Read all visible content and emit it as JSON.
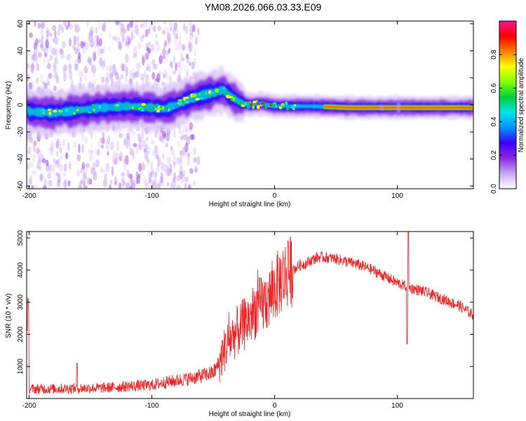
{
  "title": "YM08.2026.066.03.33.E09",
  "chart_data": [
    {
      "type": "heatmap",
      "xlabel": "Height of straight line (km)",
      "ylabel": "Frequency (Hz)",
      "xlim": [
        -202,
        162
      ],
      "ylim": [
        -62,
        62
      ],
      "xticks": [
        -200,
        -100,
        0,
        100
      ],
      "yticks": [
        -60,
        -40,
        -20,
        0,
        20,
        40,
        60
      ],
      "colorbar": {
        "label": "Normalized spectral amplitude",
        "range": [
          0,
          1
        ],
        "ticks": [
          "0.0",
          "0.2",
          "0.4",
          "0.6",
          "0.8"
        ],
        "colors": [
          "#ffffff",
          "#c9a6f2",
          "#8a2be2",
          "#3d00ff",
          "#0090ff",
          "#00e5e5",
          "#00d040",
          "#7fff00",
          "#ffff00",
          "#ff8000",
          "#ff0000",
          "#ff1493"
        ]
      },
      "ridge": [
        {
          "x": -200,
          "f": -5
        },
        {
          "x": -180,
          "f": -6
        },
        {
          "x": -160,
          "f": -4
        },
        {
          "x": -140,
          "f": -2
        },
        {
          "x": -120,
          "f": -1
        },
        {
          "x": -100,
          "f": -2
        },
        {
          "x": -90,
          "f": -3
        },
        {
          "x": -80,
          "f": 0
        },
        {
          "x": -70,
          "f": 4
        },
        {
          "x": -60,
          "f": 7
        },
        {
          "x": -50,
          "f": 9
        },
        {
          "x": -42,
          "f": 11
        },
        {
          "x": -35,
          "f": 6
        },
        {
          "x": -28,
          "f": 2
        },
        {
          "x": -20,
          "f": 0
        },
        {
          "x": -10,
          "f": 1
        },
        {
          "x": 0,
          "f": -1
        },
        {
          "x": 10,
          "f": -1
        },
        {
          "x": 30,
          "f": -1
        },
        {
          "x": 60,
          "f": -2
        },
        {
          "x": 90,
          "f": -2
        },
        {
          "x": 120,
          "f": -2
        },
        {
          "x": 162,
          "f": -2
        }
      ]
    },
    {
      "type": "line",
      "xlabel": "Height of straight line (km)",
      "ylabel": "SNR (10 * v/v)",
      "xlim": [
        -202,
        162
      ],
      "ylim": [
        0,
        5200
      ],
      "xticks": [
        -200,
        -100,
        0,
        100
      ],
      "yticks": [
        1000,
        2000,
        3000,
        4000,
        5000
      ],
      "color": "#ee2222",
      "series": [
        {
          "x": [
            -200,
            -180,
            -160,
            -140,
            -120,
            -100,
            -90,
            -80,
            -70,
            -60,
            -50,
            -45,
            -40,
            -35,
            -30,
            -25,
            -20,
            -15,
            -10,
            -5,
            0,
            5,
            10,
            15,
            20,
            25,
            30,
            35,
            40,
            50,
            60,
            70,
            80,
            90,
            100,
            110,
            120,
            130,
            140,
            150,
            162
          ],
          "y": [
            300,
            300,
            320,
            330,
            380,
            420,
            500,
            560,
            620,
            700,
            800,
            1100,
            1600,
            1900,
            2100,
            2300,
            2500,
            2800,
            2900,
            3100,
            3400,
            3700,
            3900,
            4000,
            4150,
            4200,
            4300,
            4400,
            4400,
            4350,
            4250,
            4150,
            4000,
            3800,
            3600,
            3450,
            3350,
            3200,
            3050,
            2900,
            2600
          ]
        }
      ]
    }
  ]
}
